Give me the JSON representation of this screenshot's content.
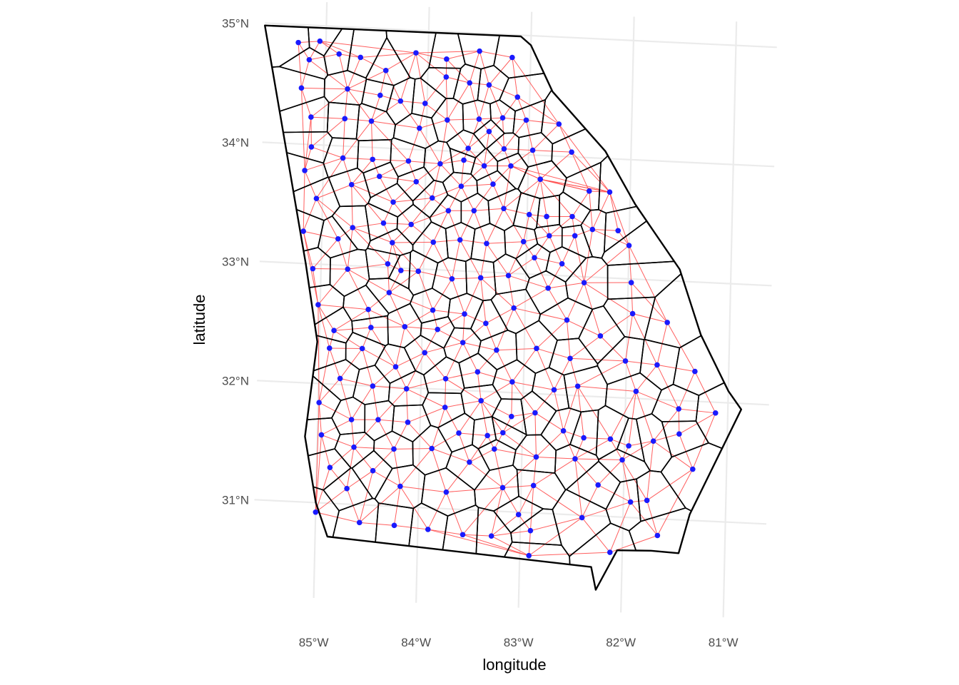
{
  "chart_data": {
    "type": "map",
    "title": "",
    "xlabel": "longitude",
    "ylabel": "latitude",
    "x_ticks": [
      "85°W",
      "84°W",
      "83°W",
      "82°W",
      "81°W"
    ],
    "y_ticks": [
      "31°N",
      "32°N",
      "33°N",
      "34°N",
      "35°N"
    ],
    "lon_range": [
      -85.6,
      -80.6
    ],
    "lat_range": [
      30.2,
      35.2
    ],
    "grid": true,
    "colors": {
      "boundary": "#000000",
      "edge": "#ff4d4d",
      "node": "#1a1aff",
      "grid": "#ebebeb"
    },
    "state_outline": [
      [
        -85.6,
        34.98
      ],
      [
        -83.1,
        34.99
      ],
      [
        -83.0,
        34.92
      ],
      [
        -82.78,
        34.54
      ],
      [
        -82.25,
        34.06
      ],
      [
        -81.95,
        33.63
      ],
      [
        -81.5,
        33.1
      ],
      [
        -81.28,
        32.56
      ],
      [
        -81.0,
        32.1
      ],
      [
        -80.87,
        31.95
      ],
      [
        -81.35,
        31.05
      ],
      [
        -81.45,
        30.72
      ],
      [
        -81.72,
        30.73
      ],
      [
        -82.05,
        30.72
      ],
      [
        -82.25,
        30.38
      ],
      [
        -82.3,
        30.57
      ],
      [
        -84.88,
        30.72
      ],
      [
        -85.0,
        31.0
      ],
      [
        -85.12,
        31.55
      ],
      [
        -85.02,
        32.35
      ],
      [
        -85.15,
        33.0
      ],
      [
        -85.6,
        34.98
      ]
    ],
    "counties": [
      [
        -85.27,
        34.85
      ],
      [
        -85.06,
        34.87
      ],
      [
        -84.87,
        34.77
      ],
      [
        -84.66,
        34.75
      ],
      [
        -84.41,
        34.65
      ],
      [
        -84.12,
        34.81
      ],
      [
        -83.82,
        34.77
      ],
      [
        -83.5,
        34.85
      ],
      [
        -83.18,
        34.81
      ],
      [
        -85.16,
        34.71
      ],
      [
        -84.46,
        34.44
      ],
      [
        -83.82,
        34.62
      ],
      [
        -83.59,
        34.58
      ],
      [
        -83.4,
        34.57
      ],
      [
        -83.12,
        34.48
      ],
      [
        -85.23,
        34.47
      ],
      [
        -84.78,
        34.48
      ],
      [
        -84.26,
        34.4
      ],
      [
        -84.02,
        34.39
      ],
      [
        -83.49,
        34.28
      ],
      [
        -83.26,
        34.3
      ],
      [
        -83.03,
        34.29
      ],
      [
        -82.71,
        34.27
      ],
      [
        -84.07,
        34.18
      ],
      [
        -83.8,
        34.26
      ],
      [
        -83.39,
        34.18
      ],
      [
        -85.13,
        34.23
      ],
      [
        -84.8,
        34.23
      ],
      [
        -84.54,
        34.22
      ],
      [
        -83.59,
        34.03
      ],
      [
        -83.24,
        34.04
      ],
      [
        -82.96,
        34.04
      ],
      [
        -82.58,
        34.04
      ],
      [
        -85.12,
        33.98
      ],
      [
        -84.81,
        33.9
      ],
      [
        -84.52,
        33.9
      ],
      [
        -84.17,
        33.9
      ],
      [
        -83.86,
        33.89
      ],
      [
        -83.63,
        33.93
      ],
      [
        -83.43,
        33.89
      ],
      [
        -83.17,
        33.9
      ],
      [
        -82.88,
        33.8
      ],
      [
        -85.18,
        33.78
      ],
      [
        -84.72,
        33.68
      ],
      [
        -84.45,
        33.76
      ],
      [
        -84.09,
        33.73
      ],
      [
        -83.65,
        33.71
      ],
      [
        -83.34,
        33.74
      ],
      [
        -82.88,
        33.8
      ],
      [
        -82.4,
        33.72
      ],
      [
        -82.2,
        33.72
      ],
      [
        -85.06,
        33.55
      ],
      [
        -84.31,
        33.55
      ],
      [
        -83.93,
        33.6
      ],
      [
        -83.77,
        33.5
      ],
      [
        -83.52,
        33.51
      ],
      [
        -83.23,
        33.54
      ],
      [
        -82.98,
        33.5
      ],
      [
        -82.81,
        33.49
      ],
      [
        -82.56,
        33.5
      ],
      [
        -84.4,
        33.37
      ],
      [
        -84.7,
        33.32
      ],
      [
        -84.13,
        33.37
      ],
      [
        -83.65,
        33.26
      ],
      [
        -83.39,
        33.24
      ],
      [
        -83.03,
        33.27
      ],
      [
        -82.78,
        33.33
      ],
      [
        -82.53,
        33.34
      ],
      [
        -82.36,
        33.4
      ],
      [
        -82.11,
        33.4
      ],
      [
        -85.18,
        33.27
      ],
      [
        -84.84,
        33.22
      ],
      [
        -84.31,
        33.21
      ],
      [
        -83.91,
        33.23
      ],
      [
        -82.92,
        33.14
      ],
      [
        -82.65,
        33.1
      ],
      [
        -82.0,
        33.28
      ],
      [
        -85.08,
        32.96
      ],
      [
        -84.74,
        32.97
      ],
      [
        -84.35,
        33.03
      ],
      [
        -84.05,
        32.98
      ],
      [
        -84.22,
        32.98
      ],
      [
        -83.72,
        32.93
      ],
      [
        -83.44,
        32.95
      ],
      [
        -83.17,
        32.98
      ],
      [
        -82.78,
        32.89
      ],
      [
        -82.43,
        32.95
      ],
      [
        -81.97,
        32.97
      ],
      [
        -84.33,
        32.79
      ],
      [
        -83.9,
        32.66
      ],
      [
        -83.59,
        32.64
      ],
      [
        -83.38,
        32.57
      ],
      [
        -83.11,
        32.71
      ],
      [
        -81.95,
        32.71
      ],
      [
        -81.61,
        32.65
      ],
      [
        -85.02,
        32.66
      ],
      [
        -84.53,
        32.64
      ],
      [
        -82.59,
        32.63
      ],
      [
        -84.86,
        32.45
      ],
      [
        -84.5,
        32.49
      ],
      [
        -84.17,
        32.51
      ],
      [
        -83.85,
        32.5
      ],
      [
        -83.6,
        32.4
      ],
      [
        -82.88,
        32.38
      ],
      [
        -82.26,
        32.51
      ],
      [
        -84.9,
        32.3
      ],
      [
        -84.58,
        32.31
      ],
      [
        -84.25,
        32.17
      ],
      [
        -83.97,
        32.3
      ],
      [
        -83.27,
        32.35
      ],
      [
        -82.55,
        32.31
      ],
      [
        -82.01,
        32.31
      ],
      [
        -81.7,
        32.29
      ],
      [
        -81.33,
        32.25
      ],
      [
        -84.79,
        32.05
      ],
      [
        -84.47,
        32.0
      ],
      [
        -84.14,
        31.99
      ],
      [
        -83.76,
        32.09
      ],
      [
        -83.45,
        32.16
      ],
      [
        -83.11,
        32.09
      ],
      [
        -82.7,
        32.04
      ],
      [
        -82.47,
        32.08
      ],
      [
        -81.9,
        32.06
      ],
      [
        -81.48,
        31.93
      ],
      [
        -81.12,
        31.91
      ],
      [
        -84.99,
        31.84
      ],
      [
        -84.67,
        31.71
      ],
      [
        -84.41,
        31.72
      ],
      [
        -84.12,
        31.71
      ],
      [
        -83.76,
        31.85
      ],
      [
        -83.41,
        31.92
      ],
      [
        -83.11,
        31.8
      ],
      [
        -82.88,
        31.84
      ],
      [
        -82.6,
        31.7
      ],
      [
        -82.4,
        31.65
      ],
      [
        -82.14,
        31.65
      ],
      [
        -81.96,
        31.6
      ],
      [
        -81.72,
        31.65
      ],
      [
        -81.47,
        31.72
      ],
      [
        -84.96,
        31.57
      ],
      [
        -84.64,
        31.48
      ],
      [
        -84.25,
        31.48
      ],
      [
        -83.88,
        31.5
      ],
      [
        -83.62,
        31.64
      ],
      [
        -83.34,
        31.63
      ],
      [
        -83.19,
        31.66
      ],
      [
        -83.27,
        31.52
      ],
      [
        -82.86,
        31.47
      ],
      [
        -82.48,
        31.47
      ],
      [
        -82.02,
        31.48
      ],
      [
        -81.33,
        31.43
      ],
      [
        -83.51,
        31.4
      ],
      [
        -84.87,
        31.3
      ],
      [
        -84.45,
        31.29
      ],
      [
        -84.7,
        31.13
      ],
      [
        -84.18,
        31.17
      ],
      [
        -83.18,
        31.2
      ],
      [
        -82.88,
        31.23
      ],
      [
        -82.25,
        31.26
      ],
      [
        -81.77,
        31.15
      ],
      [
        -81.93,
        31.13
      ],
      [
        -83.73,
        31.14
      ],
      [
        -85.0,
        30.92
      ],
      [
        -84.57,
        30.85
      ],
      [
        -84.23,
        30.84
      ],
      [
        -83.9,
        30.82
      ],
      [
        -83.56,
        30.79
      ],
      [
        -83.28,
        30.79
      ],
      [
        -82.9,
        30.85
      ],
      [
        -83.02,
        30.98
      ],
      [
        -82.4,
        30.98
      ],
      [
        -81.66,
        30.86
      ],
      [
        -82.12,
        30.7
      ],
      [
        -82.91,
        30.64
      ]
    ]
  }
}
